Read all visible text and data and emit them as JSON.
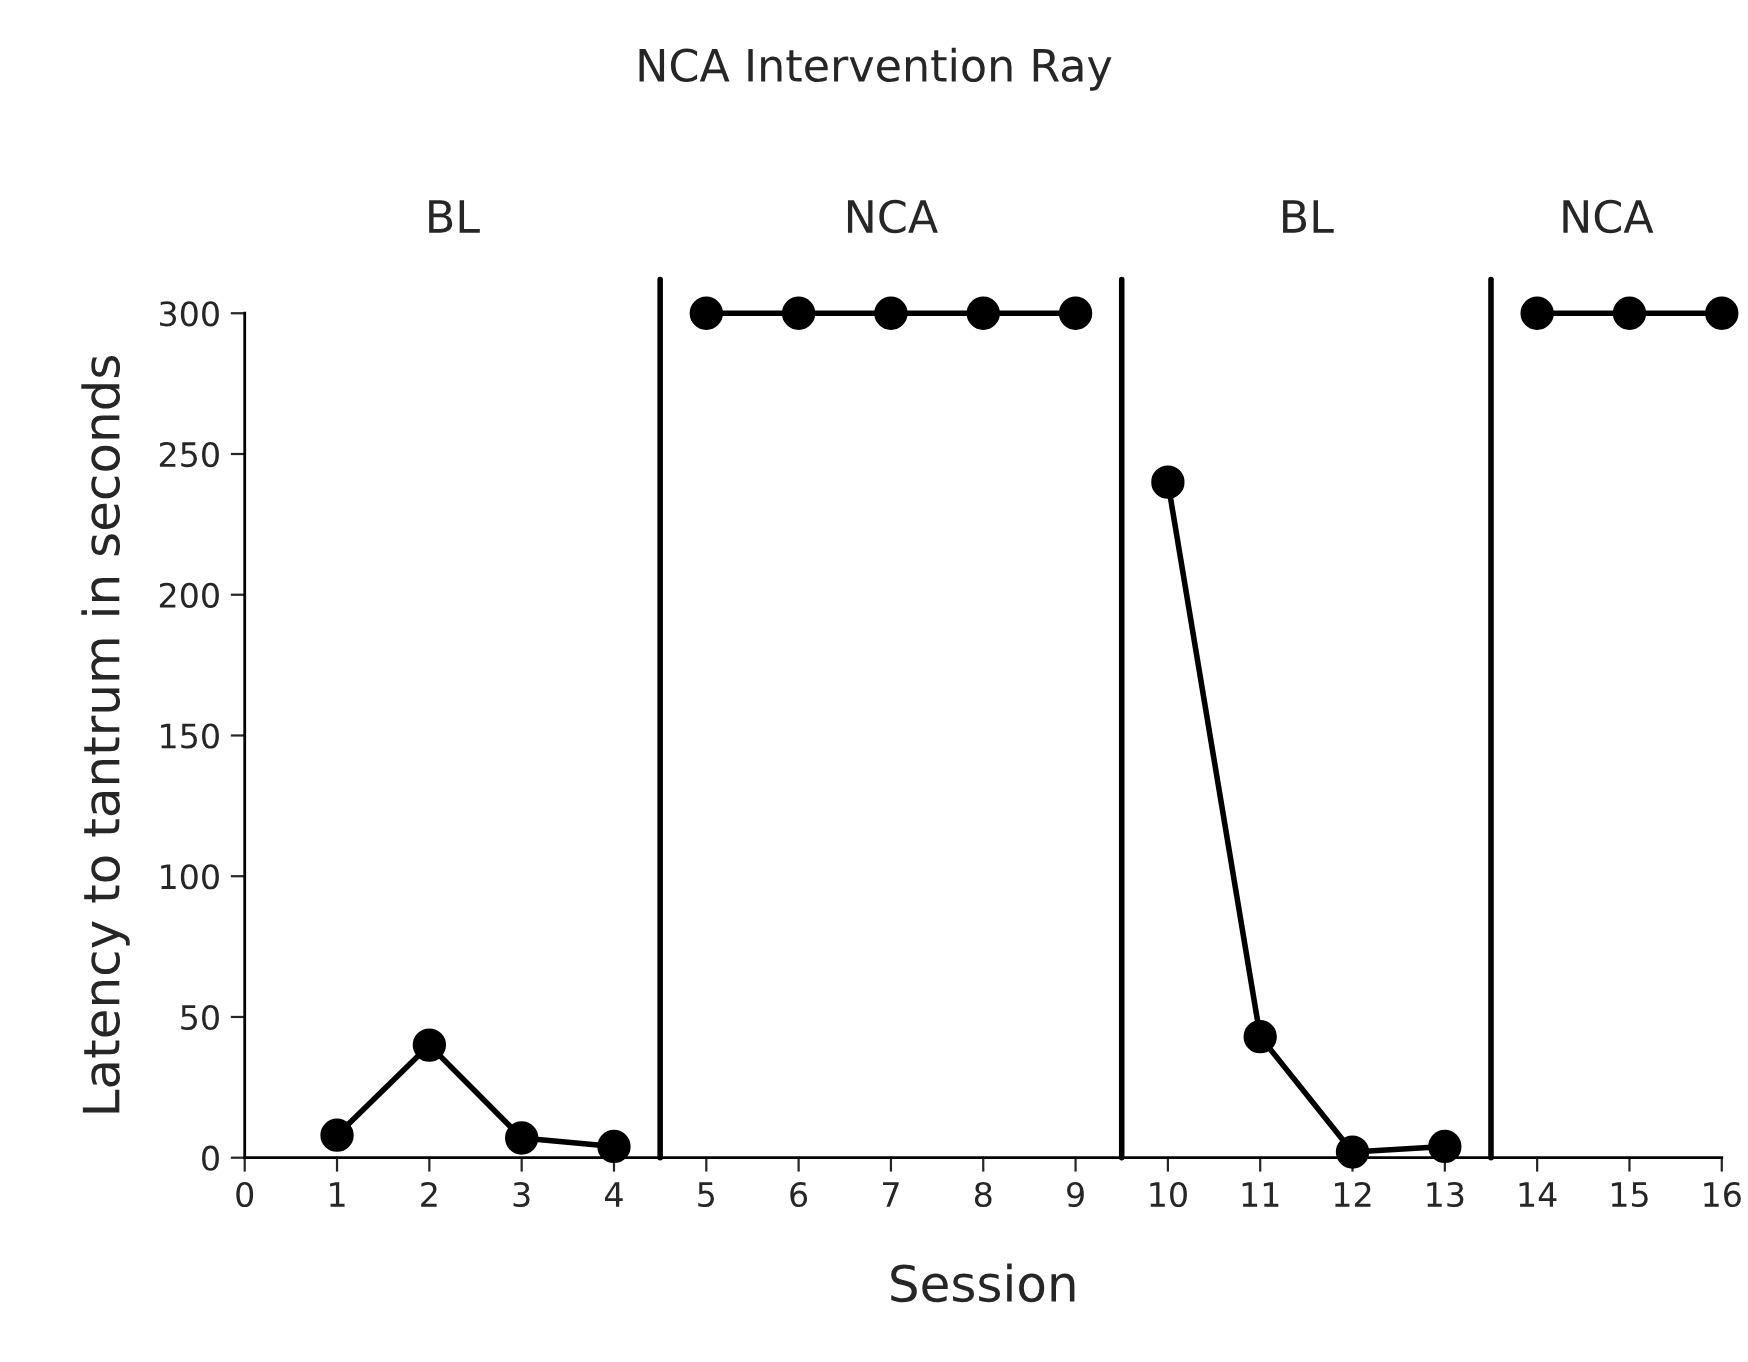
{
  "chart_data": {
    "type": "line",
    "title": "NCA Intervention Ray",
    "xlabel": "Session",
    "ylabel": "Latency to tantrum in seconds",
    "series": [
      {
        "color": "#000000",
        "x": [
          1,
          2,
          3,
          4
        ],
        "values": [
          8,
          40,
          7,
          4
        ]
      },
      {
        "color": "#000000",
        "x": [
          5,
          6,
          7,
          8,
          9
        ],
        "values": [
          300,
          300,
          300,
          300,
          300
        ]
      },
      {
        "color": "#000000",
        "x": [
          10,
          11,
          12,
          13
        ],
        "values": [
          240,
          43,
          2,
          4
        ]
      },
      {
        "color": "#000000",
        "x": [
          14,
          15,
          16
        ],
        "values": [
          300,
          300,
          300
        ]
      }
    ],
    "xlim": [
      0,
      16
    ],
    "xticks": [
      0,
      1,
      2,
      3,
      4,
      5,
      6,
      7,
      8,
      9,
      10,
      11,
      12,
      13,
      14,
      15,
      16
    ],
    "ylim": [
      0,
      300
    ],
    "yticks": [
      0,
      50,
      100,
      150,
      200,
      250,
      300
    ],
    "ref_lines": [
      {
        "axis": "x",
        "value": 4.5,
        "color": "#000000"
      },
      {
        "axis": "x",
        "value": 9.5,
        "color": "#000000"
      },
      {
        "axis": "x",
        "value": 13.5,
        "color": "#000000"
      }
    ],
    "annotations": [
      "BL",
      "NCA",
      "BL",
      "NCA"
    ],
    "marker": "circle",
    "line_style": "solid",
    "grid": false,
    "legend": false
  }
}
